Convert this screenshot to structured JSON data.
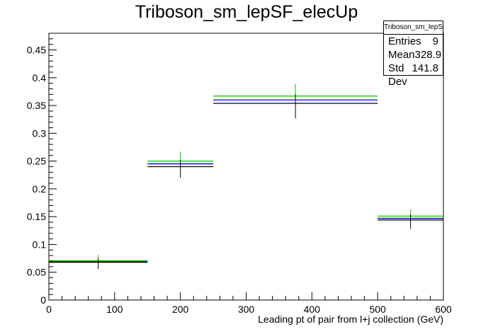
{
  "chart_data": {
    "type": "histogram",
    "title": "Triboson_sm_lepSF_elecUp",
    "xlabel": "Leading pt of pair from l+j collection (GeV)",
    "ylabel": "",
    "xlim": [
      0,
      600
    ],
    "ylim": [
      0,
      0.48
    ],
    "x_ticks": [
      0,
      100,
      200,
      300,
      400,
      500,
      600
    ],
    "y_ticks": [
      0,
      0.05,
      0.1,
      0.15,
      0.2,
      0.25,
      0.3,
      0.35,
      0.4,
      0.45
    ],
    "bins": [
      {
        "x_low": 0,
        "x_high": 150,
        "center": 75
      },
      {
        "x_low": 150,
        "x_high": 250,
        "center": 200
      },
      {
        "x_low": 250,
        "x_high": 500,
        "center": 375
      },
      {
        "x_low": 500,
        "x_high": 600,
        "center": 550
      }
    ],
    "series": [
      {
        "color": "#00cc00",
        "values": [
          0.071,
          0.25,
          0.367,
          0.151
        ]
      },
      {
        "color": "#0000cc",
        "values": [
          0.069,
          0.245,
          0.36,
          0.147
        ]
      },
      {
        "color": "#000000",
        "values": [
          0.068,
          0.24,
          0.354,
          0.144
        ],
        "errors": [
          0.012,
          0.02,
          0.027,
          0.016
        ]
      }
    ],
    "error_bar_top": [
      0.081,
      0.267,
      0.389,
      0.163
    ],
    "stats": {
      "name": "Triboson_sm_lepSF_elecUp",
      "entries_label": "Entries",
      "entries": "9",
      "mean_label": "Mean",
      "mean": "328.9",
      "stddev_label": "Std Dev",
      "stddev": "141.8"
    },
    "grid": false,
    "legend": "top-right"
  }
}
